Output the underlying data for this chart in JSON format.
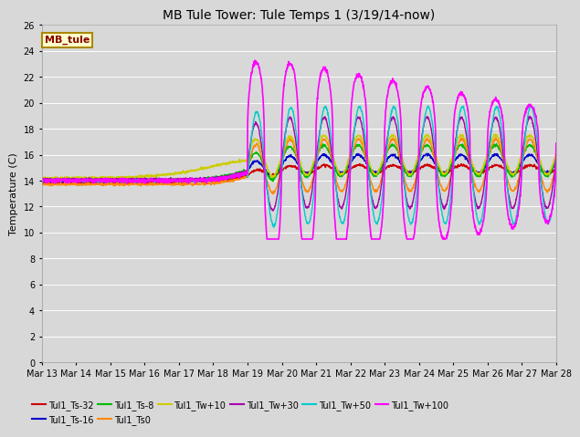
{
  "title": "MB Tule Tower: Tule Temps 1 (3/19/14-now)",
  "ylabel": "Temperature (C)",
  "ylim": [
    0,
    26
  ],
  "yticks": [
    0,
    2,
    4,
    6,
    8,
    10,
    12,
    14,
    16,
    18,
    20,
    22,
    24,
    26
  ],
  "background_color": "#d8d8d8",
  "plot_bg_color": "#d8d8d8",
  "legend_box_label": "MB_tule",
  "legend_box_color": "#ffffcc",
  "legend_box_border": "#aa8800",
  "legend_box_text": "#880000",
  "series": [
    {
      "label": "Tul1_Ts-32",
      "color": "#cc0000",
      "lw": 1.0
    },
    {
      "label": "Tul1_Ts-16",
      "color": "#0000cc",
      "lw": 1.0
    },
    {
      "label": "Tul1_Ts-8",
      "color": "#00bb00",
      "lw": 1.0
    },
    {
      "label": "Tul1_Ts0",
      "color": "#ff8800",
      "lw": 1.0
    },
    {
      "label": "Tul1_Tw+10",
      "color": "#cccc00",
      "lw": 1.0
    },
    {
      "label": "Tul1_Tw+30",
      "color": "#aa00aa",
      "lw": 1.0
    },
    {
      "label": "Tul1_Tw+50",
      "color": "#00cccc",
      "lw": 1.0
    },
    {
      "label": "Tul1_Tw+100",
      "color": "#ff00ff",
      "lw": 1.2
    }
  ],
  "xtick_labels": [
    "Mar 13",
    "Mar 14",
    "Mar 15",
    "Mar 16",
    "Mar 17",
    "Mar 18",
    "Mar 19",
    "Mar 20",
    "Mar 21",
    "Mar 22",
    "Mar 23",
    "Mar 24",
    "Mar 25",
    "Mar 26",
    "Mar 27",
    "Mar 28"
  ],
  "xtick_positions": [
    0,
    1,
    2,
    3,
    4,
    5,
    6,
    7,
    8,
    9,
    10,
    11,
    12,
    13,
    14,
    15
  ],
  "x_start": 0,
  "x_end": 15,
  "transition_x": 6.0
}
